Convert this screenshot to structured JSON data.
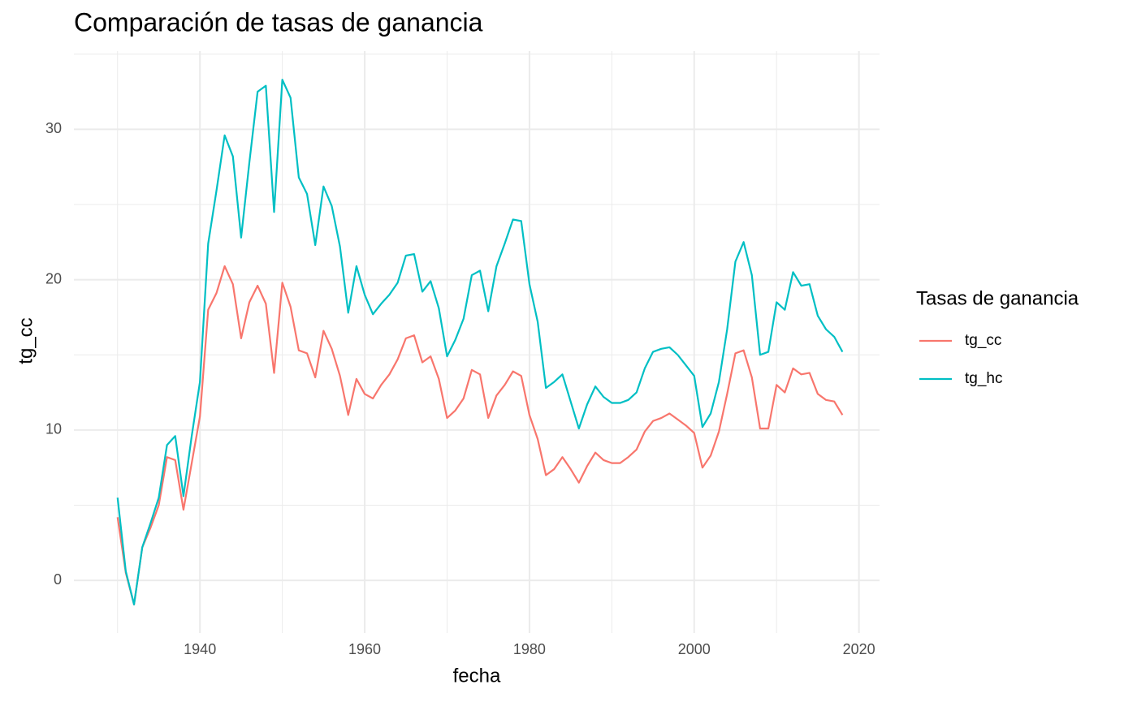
{
  "chart_data": {
    "type": "line",
    "title": "Comparación de tasas de ganancia",
    "x_label": "fecha",
    "y_label": "tg_cc",
    "legend_title": "Tasas de ganancia",
    "legend": "right",
    "grid": true,
    "x": [
      1930,
      1931,
      1932,
      1933,
      1934,
      1935,
      1936,
      1937,
      1938,
      1939,
      1940,
      1941,
      1942,
      1943,
      1944,
      1945,
      1946,
      1947,
      1948,
      1949,
      1950,
      1951,
      1952,
      1953,
      1954,
      1955,
      1956,
      1957,
      1958,
      1959,
      1960,
      1961,
      1962,
      1963,
      1964,
      1965,
      1966,
      1967,
      1968,
      1969,
      1970,
      1971,
      1972,
      1973,
      1974,
      1975,
      1976,
      1977,
      1978,
      1979,
      1980,
      1981,
      1982,
      1983,
      1984,
      1985,
      1986,
      1987,
      1988,
      1989,
      1990,
      1991,
      1992,
      1993,
      1994,
      1995,
      1996,
      1997,
      1998,
      1999,
      2000,
      2001,
      2002,
      2003,
      2004,
      2005,
      2006,
      2007,
      2008,
      2009,
      2010,
      2011,
      2012,
      2013,
      2014,
      2015,
      2016,
      2017,
      2018
    ],
    "series": [
      {
        "name": "tg_cc",
        "color": "#F8766D",
        "values": [
          4.2,
          0.5,
          -1.6,
          2.2,
          3.5,
          5.0,
          8.2,
          8.0,
          4.7,
          7.8,
          10.9,
          18.0,
          19.1,
          20.9,
          19.7,
          16.1,
          18.5,
          19.6,
          18.4,
          13.8,
          19.8,
          18.2,
          15.3,
          15.1,
          13.5,
          16.6,
          15.4,
          13.6,
          11.0,
          13.4,
          12.4,
          12.1,
          13.0,
          13.7,
          14.7,
          16.1,
          16.3,
          14.5,
          14.9,
          13.4,
          10.8,
          11.3,
          12.1,
          14.0,
          13.7,
          10.8,
          12.3,
          13.0,
          13.9,
          13.6,
          11.0,
          9.4,
          7.0,
          7.4,
          8.2,
          7.4,
          6.5,
          7.6,
          8.5,
          8.0,
          7.8,
          7.8,
          8.2,
          8.7,
          9.9,
          10.6,
          10.8,
          11.1,
          10.7,
          10.3,
          9.8,
          7.5,
          8.3,
          9.9,
          12.4,
          15.1,
          15.3,
          13.5,
          10.1,
          10.1,
          13.0,
          12.5,
          14.1,
          13.7,
          13.8,
          12.4,
          12.0,
          11.9,
          11.0
        ]
      },
      {
        "name": "tg_hc",
        "color": "#00BFC4",
        "values": [
          5.5,
          0.6,
          -1.6,
          2.2,
          3.8,
          5.5,
          9.0,
          9.6,
          5.6,
          9.6,
          13.2,
          22.4,
          25.9,
          29.6,
          28.2,
          22.8,
          27.8,
          32.5,
          32.9,
          24.5,
          33.3,
          32.1,
          26.8,
          25.7,
          22.3,
          26.2,
          24.9,
          22.2,
          17.8,
          20.9,
          19.0,
          17.7,
          18.4,
          19.0,
          19.8,
          21.6,
          21.7,
          19.2,
          19.9,
          18.1,
          14.9,
          16.0,
          17.4,
          20.3,
          20.6,
          17.9,
          20.9,
          22.4,
          24.0,
          23.9,
          19.7,
          17.2,
          12.8,
          13.2,
          13.7,
          11.9,
          10.1,
          11.7,
          12.9,
          12.2,
          11.8,
          11.8,
          12.0,
          12.5,
          14.1,
          15.2,
          15.4,
          15.5,
          15.0,
          14.3,
          13.6,
          10.2,
          11.1,
          13.2,
          16.7,
          21.2,
          22.5,
          20.3,
          15.0,
          15.2,
          18.5,
          18.0,
          20.5,
          19.6,
          19.7,
          17.6,
          16.7,
          16.2,
          15.2
        ]
      }
    ],
    "xlim": [
      1924.7,
      2022.5
    ],
    "ylim": [
      -3.5,
      35.2
    ],
    "xticks": [
      1940,
      1960,
      1980,
      2000,
      2020
    ],
    "yticks": [
      0,
      10,
      20,
      30
    ],
    "xminorticks": [
      1930,
      1950,
      1970,
      1990,
      2010
    ],
    "yminorticks": [
      5,
      15,
      25,
      35
    ]
  }
}
